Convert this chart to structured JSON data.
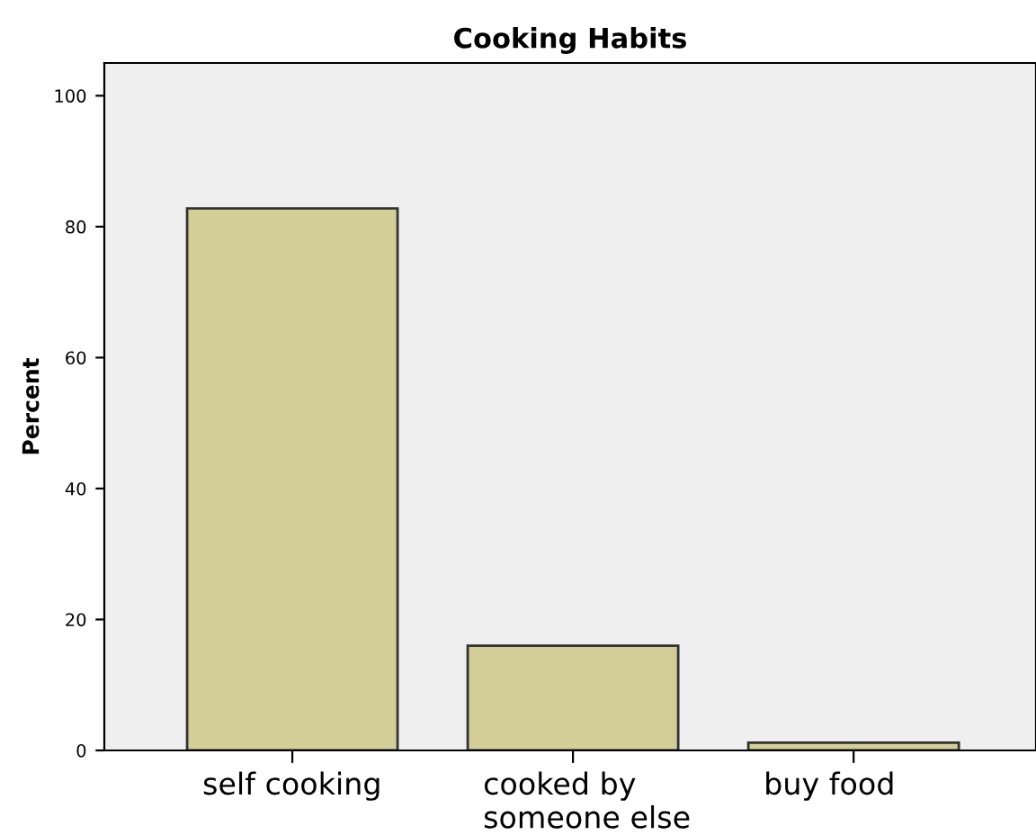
{
  "chart_data": {
    "type": "bar",
    "title": "Cooking Habits",
    "ylabel": "Percent",
    "categories": [
      "self cooking",
      "cooked by\nsomeone else",
      "buy food"
    ],
    "values": [
      82.8,
      16.0,
      1.2
    ],
    "color": "#d3ce97",
    "ylim": [
      0,
      105
    ],
    "yticks": [
      0,
      20,
      40,
      60,
      80,
      100
    ],
    "grid": false
  }
}
